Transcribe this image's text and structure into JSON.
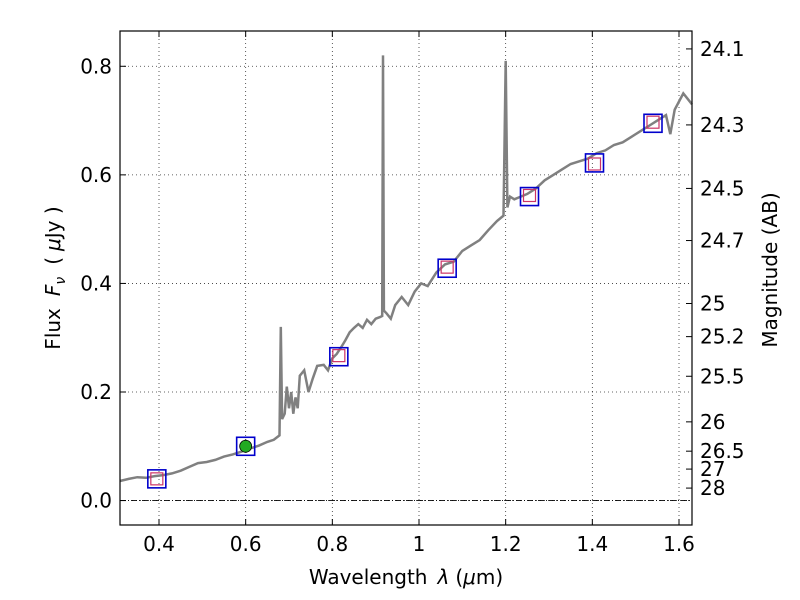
{
  "chart_data": {
    "type": "line",
    "xlabel_prefix": "Wavelength",
    "xlabel_symbol": "λ",
    "xlabel_unit_open": "(",
    "xlabel_unit_mu": "μ",
    "xlabel_unit_rest": "m)",
    "ylabel_prefix": "Flux",
    "ylabel_symbol": "F",
    "ylabel_sub": "ν",
    "ylabel_unit_open": "(",
    "ylabel_unit_mu": "μ",
    "ylabel_unit_rest": "Jy )",
    "y2label": "Magnitude (AB)",
    "xlim": [
      0.31,
      1.63
    ],
    "ylim": [
      -0.045,
      0.865
    ],
    "xticks": [
      {
        "value": 0.4,
        "label": "0.4"
      },
      {
        "value": 0.6,
        "label": "0.6"
      },
      {
        "value": 0.8,
        "label": "0.8"
      },
      {
        "value": 1.0,
        "label": "1"
      },
      {
        "value": 1.2,
        "label": "1.2"
      },
      {
        "value": 1.4,
        "label": "1.4"
      },
      {
        "value": 1.6,
        "label": "1.6"
      }
    ],
    "yticks": [
      {
        "value": 0.0,
        "label": "0.0"
      },
      {
        "value": 0.2,
        "label": "0.2"
      },
      {
        "value": 0.4,
        "label": "0.4"
      },
      {
        "value": 0.6,
        "label": "0.6"
      },
      {
        "value": 0.8,
        "label": "0.8"
      }
    ],
    "magnitude_ticks": [
      {
        "label": "24.1",
        "flux": 0.832
      },
      {
        "label": "24.3",
        "flux": 0.692
      },
      {
        "label": "24.5",
        "flux": 0.575
      },
      {
        "label": "24.7",
        "flux": 0.479
      },
      {
        "label": "25",
        "flux": 0.363
      },
      {
        "label": "25.2",
        "flux": 0.302
      },
      {
        "label": "25.5",
        "flux": 0.229
      },
      {
        "label": "26",
        "flux": 0.145
      },
      {
        "label": "26.5",
        "flux": 0.091
      },
      {
        "label": "27",
        "flux": 0.058
      },
      {
        "label": "28",
        "flux": 0.023
      }
    ],
    "colors": {
      "sed": "#808080",
      "box": "#0000cc",
      "model_box": "#cc3366",
      "detection": "#22aa22",
      "zero_line": "#000000"
    },
    "sed_spectrum": [
      [
        0.31,
        0.036
      ],
      [
        0.33,
        0.04
      ],
      [
        0.35,
        0.043
      ],
      [
        0.37,
        0.042
      ],
      [
        0.39,
        0.045
      ],
      [
        0.41,
        0.047
      ],
      [
        0.43,
        0.05
      ],
      [
        0.45,
        0.055
      ],
      [
        0.47,
        0.062
      ],
      [
        0.49,
        0.069
      ],
      [
        0.51,
        0.071
      ],
      [
        0.53,
        0.075
      ],
      [
        0.55,
        0.081
      ],
      [
        0.57,
        0.085
      ],
      [
        0.59,
        0.09
      ],
      [
        0.61,
        0.096
      ],
      [
        0.63,
        0.101
      ],
      [
        0.65,
        0.108
      ],
      [
        0.665,
        0.112
      ],
      [
        0.678,
        0.12
      ],
      [
        0.681,
        0.32
      ],
      [
        0.684,
        0.15
      ],
      [
        0.69,
        0.16
      ],
      [
        0.695,
        0.21
      ],
      [
        0.7,
        0.17
      ],
      [
        0.705,
        0.2
      ],
      [
        0.71,
        0.16
      ],
      [
        0.715,
        0.19
      ],
      [
        0.72,
        0.17
      ],
      [
        0.725,
        0.23
      ],
      [
        0.735,
        0.24
      ],
      [
        0.745,
        0.2
      ],
      [
        0.755,
        0.225
      ],
      [
        0.765,
        0.248
      ],
      [
        0.78,
        0.25
      ],
      [
        0.79,
        0.24
      ],
      [
        0.8,
        0.262
      ],
      [
        0.81,
        0.27
      ],
      [
        0.82,
        0.282
      ],
      [
        0.83,
        0.295
      ],
      [
        0.84,
        0.31
      ],
      [
        0.85,
        0.318
      ],
      [
        0.86,
        0.325
      ],
      [
        0.87,
        0.318
      ],
      [
        0.88,
        0.333
      ],
      [
        0.89,
        0.325
      ],
      [
        0.9,
        0.335
      ],
      [
        0.91,
        0.338
      ],
      [
        0.915,
        0.34
      ],
      [
        0.917,
        0.82
      ],
      [
        0.919,
        0.35
      ],
      [
        0.925,
        0.345
      ],
      [
        0.935,
        0.335
      ],
      [
        0.945,
        0.36
      ],
      [
        0.96,
        0.375
      ],
      [
        0.975,
        0.36
      ],
      [
        0.99,
        0.385
      ],
      [
        1.005,
        0.4
      ],
      [
        1.02,
        0.395
      ],
      [
        1.04,
        0.42
      ],
      [
        1.06,
        0.435
      ],
      [
        1.08,
        0.44
      ],
      [
        1.1,
        0.46
      ],
      [
        1.12,
        0.47
      ],
      [
        1.14,
        0.48
      ],
      [
        1.16,
        0.498
      ],
      [
        1.18,
        0.515
      ],
      [
        1.195,
        0.525
      ],
      [
        1.2,
        0.81
      ],
      [
        1.204,
        0.54
      ],
      [
        1.21,
        0.56
      ],
      [
        1.22,
        0.555
      ],
      [
        1.235,
        0.56
      ],
      [
        1.25,
        0.565
      ],
      [
        1.27,
        0.575
      ],
      [
        1.29,
        0.59
      ],
      [
        1.31,
        0.6
      ],
      [
        1.33,
        0.61
      ],
      [
        1.35,
        0.62
      ],
      [
        1.37,
        0.625
      ],
      [
        1.39,
        0.63
      ],
      [
        1.41,
        0.64
      ],
      [
        1.43,
        0.645
      ],
      [
        1.45,
        0.655
      ],
      [
        1.47,
        0.66
      ],
      [
        1.49,
        0.67
      ],
      [
        1.51,
        0.68
      ],
      [
        1.53,
        0.69
      ],
      [
        1.55,
        0.7
      ],
      [
        1.57,
        0.71
      ],
      [
        1.58,
        0.675
      ],
      [
        1.59,
        0.72
      ],
      [
        1.61,
        0.75
      ],
      [
        1.63,
        0.73
      ]
    ],
    "photometry": [
      {
        "x": 0.395,
        "y": 0.04,
        "model": 0.04,
        "detected": false
      },
      {
        "x": 0.6,
        "y": 0.1,
        "model": 0.1,
        "detected": true,
        "err": 0.012
      },
      {
        "x": 0.815,
        "y": 0.267,
        "model": 0.265,
        "detected": false
      },
      {
        "x": 1.065,
        "y": 0.43,
        "model": 0.428,
        "detected": false
      },
      {
        "x": 1.255,
        "y": 0.562,
        "model": 0.56,
        "detected": false
      },
      {
        "x": 1.405,
        "y": 0.62,
        "model": 0.622,
        "detected": false
      },
      {
        "x": 1.54,
        "y": 0.697,
        "model": 0.695,
        "detected": false
      }
    ]
  }
}
